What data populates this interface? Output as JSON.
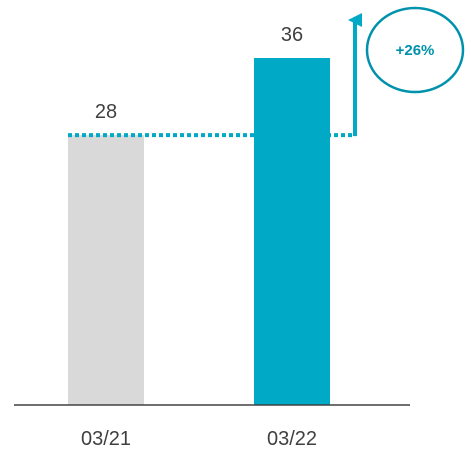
{
  "chart_data": {
    "type": "bar",
    "title": "",
    "xlabel": "",
    "ylabel": "",
    "categories": [
      "03/21",
      "03/22"
    ],
    "values": [
      28,
      36
    ],
    "value_labels": [
      "28",
      "36"
    ],
    "ylim": [
      0,
      36
    ],
    "grid": false,
    "legend": "none",
    "bar_colors": [
      "#d9d9d9",
      "#00a9c6"
    ],
    "axis_color": "#404040",
    "label_color": "#404040",
    "annotation": {
      "text": "+26%",
      "from_category": "03/21",
      "to_category": "03/22",
      "baseline_value": 28,
      "color": "#0092ac",
      "arrow_color": "#00a9c6",
      "text_color": "#0092ac",
      "style": "dotted reference line with upward arrow and oval badge"
    }
  }
}
